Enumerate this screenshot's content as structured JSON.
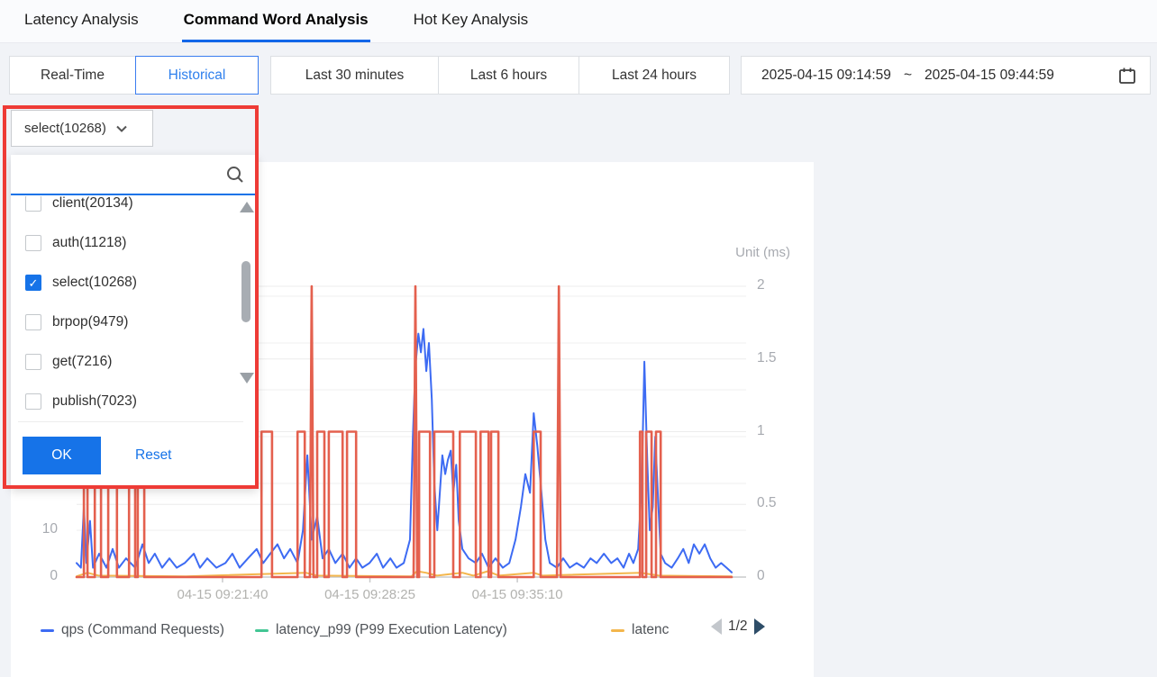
{
  "tabs": {
    "items": [
      {
        "label": "Latency Analysis",
        "active": false
      },
      {
        "label": "Command Word Analysis",
        "active": true
      },
      {
        "label": "Hot Key Analysis",
        "active": false
      }
    ]
  },
  "toolbar": {
    "mode_buttons": [
      {
        "label": "Real-Time",
        "selected": false
      },
      {
        "label": "Historical",
        "selected": true
      }
    ],
    "range_buttons": [
      {
        "label": "Last 30 minutes"
      },
      {
        "label": "Last 6 hours"
      },
      {
        "label": "Last 24 hours"
      }
    ],
    "date_range": {
      "start": "2025-04-15 09:14:59",
      "separator": "~",
      "end": "2025-04-15 09:44:59"
    }
  },
  "command_filter": {
    "trigger_label": "select(10268)",
    "search_value": "",
    "options": [
      {
        "label": "client(20134)",
        "checked": false
      },
      {
        "label": "auth(11218)",
        "checked": false
      },
      {
        "label": "select(10268)",
        "checked": true
      },
      {
        "label": "brpop(9479)",
        "checked": false
      },
      {
        "label": "get(7216)",
        "checked": false
      },
      {
        "label": "publish(7023)",
        "checked": false
      }
    ],
    "ok_label": "OK",
    "reset_label": "Reset"
  },
  "chart": {
    "unit_label": "Unit (ms)",
    "legend": [
      {
        "label": "qps (Command Requests)",
        "color": "#3d6bf3"
      },
      {
        "label": "latency_p99 (P99 Execution Latency)",
        "color": "#43c694"
      },
      {
        "label": "latenc",
        "color": "#f3b64c"
      }
    ],
    "pagination": {
      "current": "1/2"
    }
  },
  "chart_data": {
    "type": "line",
    "title": "",
    "grid": true,
    "legend_position": "bottom",
    "x_axis": {
      "domain_seconds": [
        0,
        1800
      ],
      "start_time": "2025-04-15 09:14:59",
      "end_time": "2025-04-15 09:44:59",
      "tick_seconds": [
        401,
        806,
        1211
      ],
      "tick_labels": [
        "04-15 09:21:40",
        "04-15 09:28:25",
        "04-15 09:35:10"
      ]
    },
    "y_axis_left": {
      "visible_tick_labels": [
        "10",
        "0"
      ],
      "visible_tick_values": [
        10,
        0
      ],
      "range": [
        0,
        65
      ],
      "grid_values": [
        10,
        20,
        30,
        40,
        50,
        60
      ]
    },
    "y_axis_right": {
      "label": "Unit (ms)",
      "tick_labels": [
        "2",
        "1.5",
        "1",
        "0.5",
        "0"
      ],
      "tick_values": [
        2,
        1.5,
        1,
        0.5,
        0
      ],
      "range": [
        0,
        2.1
      ],
      "grid_values": [
        0.5,
        1,
        1.5,
        2
      ]
    },
    "series": [
      {
        "name": "latency (legend truncated to 'latenc')",
        "color": "#f3b64c",
        "axis": "right",
        "width": 2,
        "points": [
          [
            0,
            0.005
          ],
          [
            30,
            0.03
          ],
          [
            60,
            0.01
          ],
          [
            300,
            0.005
          ],
          [
            630,
            0.03
          ],
          [
            660,
            0.01
          ],
          [
            920,
            0.005
          ],
          [
            935,
            0.04
          ],
          [
            960,
            0.03
          ],
          [
            990,
            0.01
          ],
          [
            1060,
            0.03
          ],
          [
            1090,
            0.01
          ],
          [
            1130,
            0.04
          ],
          [
            1160,
            0.01
          ],
          [
            1256,
            0.03
          ],
          [
            1280,
            0.01
          ],
          [
            1550,
            0.03
          ],
          [
            1600,
            0.01
          ],
          [
            1800,
            0.005
          ]
        ]
      },
      {
        "name": "qps (Command Requests)",
        "color": "#3d6bf3",
        "axis": "left",
        "width": 2,
        "points": [
          [
            0,
            3
          ],
          [
            12,
            2
          ],
          [
            20,
            15
          ],
          [
            27,
            3
          ],
          [
            37,
            12
          ],
          [
            45,
            2
          ],
          [
            62,
            5
          ],
          [
            82,
            2
          ],
          [
            99,
            6
          ],
          [
            116,
            2
          ],
          [
            136,
            4
          ],
          [
            161,
            2
          ],
          [
            181,
            7
          ],
          [
            198,
            3
          ],
          [
            215,
            5
          ],
          [
            235,
            2
          ],
          [
            255,
            4
          ],
          [
            275,
            2
          ],
          [
            297,
            3
          ],
          [
            322,
            5
          ],
          [
            339,
            2
          ],
          [
            359,
            4
          ],
          [
            384,
            2
          ],
          [
            409,
            3
          ],
          [
            428,
            5
          ],
          [
            448,
            2
          ],
          [
            471,
            4
          ],
          [
            495,
            6
          ],
          [
            513,
            3
          ],
          [
            532,
            5
          ],
          [
            552,
            7
          ],
          [
            570,
            4
          ],
          [
            587,
            6
          ],
          [
            607,
            3
          ],
          [
            622,
            10
          ],
          [
            634,
            26
          ],
          [
            646,
            8
          ],
          [
            661,
            13
          ],
          [
            676,
            4
          ],
          [
            693,
            6
          ],
          [
            711,
            3
          ],
          [
            731,
            5
          ],
          [
            750,
            2
          ],
          [
            768,
            4
          ],
          [
            785,
            2
          ],
          [
            805,
            3
          ],
          [
            825,
            5
          ],
          [
            842,
            2
          ],
          [
            862,
            4
          ],
          [
            879,
            2
          ],
          [
            899,
            3
          ],
          [
            916,
            8
          ],
          [
            924,
            30
          ],
          [
            931,
            45
          ],
          [
            939,
            52
          ],
          [
            946,
            48
          ],
          [
            953,
            53
          ],
          [
            961,
            44
          ],
          [
            968,
            50
          ],
          [
            976,
            38
          ],
          [
            983,
            20
          ],
          [
            991,
            10
          ],
          [
            998,
            18
          ],
          [
            1005,
            26
          ],
          [
            1013,
            22
          ],
          [
            1020,
            25
          ],
          [
            1028,
            27
          ],
          [
            1035,
            18
          ],
          [
            1043,
            24
          ],
          [
            1050,
            12
          ],
          [
            1060,
            6
          ],
          [
            1077,
            4
          ],
          [
            1097,
            3
          ],
          [
            1114,
            5
          ],
          [
            1132,
            2
          ],
          [
            1151,
            4
          ],
          [
            1171,
            2
          ],
          [
            1189,
            3
          ],
          [
            1206,
            8
          ],
          [
            1221,
            15
          ],
          [
            1233,
            22
          ],
          [
            1246,
            18
          ],
          [
            1256,
            35
          ],
          [
            1266,
            28
          ],
          [
            1275,
            20
          ],
          [
            1288,
            8
          ],
          [
            1300,
            3
          ],
          [
            1320,
            2
          ],
          [
            1337,
            4
          ],
          [
            1355,
            2
          ],
          [
            1374,
            3
          ],
          [
            1394,
            2
          ],
          [
            1412,
            4
          ],
          [
            1429,
            3
          ],
          [
            1449,
            5
          ],
          [
            1469,
            3
          ],
          [
            1486,
            4
          ],
          [
            1503,
            2
          ],
          [
            1518,
            5
          ],
          [
            1530,
            3
          ],
          [
            1543,
            6
          ],
          [
            1553,
            20
          ],
          [
            1560,
            46
          ],
          [
            1568,
            25
          ],
          [
            1575,
            10
          ],
          [
            1583,
            15
          ],
          [
            1590,
            30
          ],
          [
            1597,
            18
          ],
          [
            1605,
            5
          ],
          [
            1617,
            3
          ],
          [
            1635,
            2
          ],
          [
            1652,
            4
          ],
          [
            1667,
            6
          ],
          [
            1682,
            3
          ],
          [
            1696,
            7
          ],
          [
            1711,
            5
          ],
          [
            1726,
            7
          ],
          [
            1741,
            4
          ],
          [
            1756,
            2
          ],
          [
            1771,
            3
          ],
          [
            1786,
            2
          ],
          [
            1800,
            1
          ]
        ]
      },
      {
        "name": "unlabeled red series (legend on page 2/2)",
        "color": "#e4604e",
        "axis": "right",
        "width": 2.6,
        "points": [
          [
            0,
            0
          ],
          [
            20,
            0
          ],
          [
            20,
            1
          ],
          [
            30,
            1
          ],
          [
            30,
            0
          ],
          [
            50,
            0
          ],
          [
            50,
            1
          ],
          [
            67,
            1
          ],
          [
            67,
            0
          ],
          [
            87,
            0
          ],
          [
            87,
            1
          ],
          [
            111,
            1
          ],
          [
            111,
            0
          ],
          [
            144,
            0
          ],
          [
            144,
            1
          ],
          [
            161,
            1
          ],
          [
            161,
            0
          ],
          [
            168,
            0
          ],
          [
            168,
            1
          ],
          [
            186,
            1
          ],
          [
            186,
            0
          ],
          [
            508,
            0
          ],
          [
            508,
            1
          ],
          [
            537,
            1
          ],
          [
            537,
            0
          ],
          [
            607,
            0
          ],
          [
            607,
            1
          ],
          [
            627,
            1
          ],
          [
            627,
            0
          ],
          [
            641,
            0
          ],
          [
            646,
            2
          ],
          [
            651,
            0
          ],
          [
            661,
            0
          ],
          [
            661,
            1
          ],
          [
            681,
            1
          ],
          [
            681,
            0
          ],
          [
            693,
            0
          ],
          [
            693,
            1
          ],
          [
            731,
            1
          ],
          [
            731,
            0
          ],
          [
            743,
            0
          ],
          [
            743,
            1
          ],
          [
            768,
            1
          ],
          [
            768,
            0
          ],
          [
            926,
            0
          ],
          [
            931,
            2
          ],
          [
            936,
            0
          ],
          [
            941,
            0
          ],
          [
            941,
            1
          ],
          [
            971,
            1
          ],
          [
            971,
            0
          ],
          [
            983,
            0
          ],
          [
            983,
            1
          ],
          [
            1035,
            1
          ],
          [
            1035,
            0
          ],
          [
            1053,
            0
          ],
          [
            1053,
            1
          ],
          [
            1097,
            1
          ],
          [
            1097,
            0
          ],
          [
            1110,
            0
          ],
          [
            1110,
            1
          ],
          [
            1132,
            1
          ],
          [
            1132,
            0
          ],
          [
            1139,
            0
          ],
          [
            1139,
            1
          ],
          [
            1159,
            1
          ],
          [
            1159,
            0
          ],
          [
            1256,
            0
          ],
          [
            1256,
            1
          ],
          [
            1275,
            1
          ],
          [
            1275,
            0
          ],
          [
            1320,
            0
          ],
          [
            1325,
            2
          ],
          [
            1330,
            0
          ],
          [
            1548,
            0
          ],
          [
            1548,
            1
          ],
          [
            1555,
            1
          ],
          [
            1555,
            0
          ],
          [
            1565,
            0
          ],
          [
            1565,
            1
          ],
          [
            1580,
            1
          ],
          [
            1580,
            0
          ],
          [
            1592,
            0
          ],
          [
            1592,
            1
          ],
          [
            1605,
            1
          ],
          [
            1605,
            0
          ],
          [
            1800,
            0
          ]
        ]
      },
      {
        "name": "latency_p99 (P99 Execution Latency)",
        "color": "#43c694",
        "axis": "right",
        "width": 2,
        "points": []
      }
    ]
  }
}
